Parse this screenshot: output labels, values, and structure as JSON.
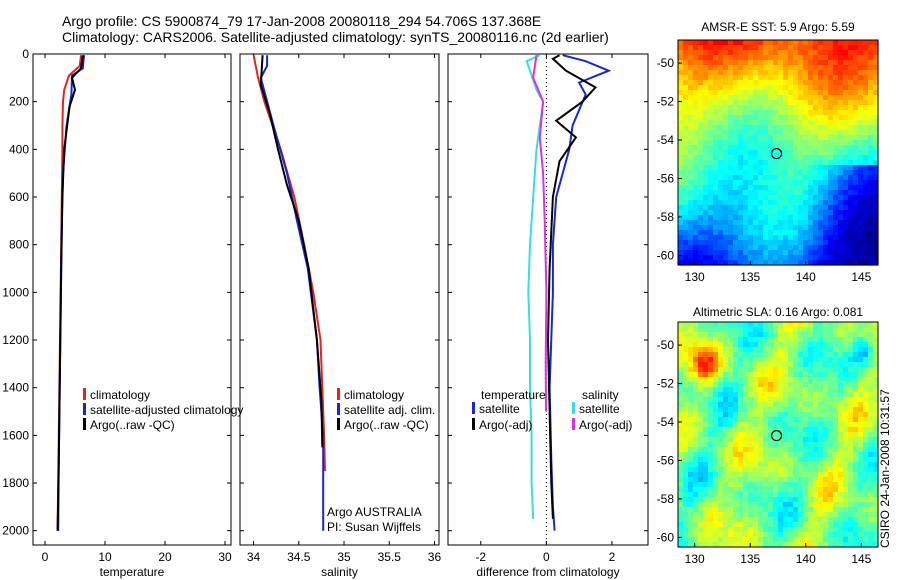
{
  "header": {
    "line1": "Argo profile: CS 5900874_79 17-Jan-2008 20080118_294 54.706S 137.368E",
    "line2": "Climatology: CARS2006. Satellite-adjusted climatology: synTS_20080116.nc (2d earlier)"
  },
  "side_label": "CSIRO 24-Jan-2008 10:31:57",
  "colors": {
    "red": "#e8231c",
    "blue": "#1526d6",
    "black": "#000000",
    "cyan": "#33e0e0",
    "magenta": "#e02ee0",
    "dotted": "#000000"
  },
  "chart_data": [
    {
      "id": "temperature_profile",
      "type": "line",
      "xlabel": "temperature",
      "ylabel": "",
      "xlim": [
        -2,
        31
      ],
      "ylim": [
        2060,
        0
      ],
      "xticks": [
        "0",
        "10",
        "20",
        "30"
      ],
      "yticks": [
        "0",
        "200",
        "400",
        "600",
        "800",
        "1000",
        "1200",
        "1400",
        "1600",
        "1800",
        "2000"
      ],
      "legend": [
        "climatology",
        "satellite-adjusted climatology",
        "Argo(..raw -QC)"
      ],
      "series": [
        {
          "name": "climatology",
          "color": "red",
          "x": [
            6.0,
            5.8,
            4.0,
            3.2,
            3.0,
            2.9,
            2.9,
            2.8,
            2.7,
            2.6,
            2.5,
            2.4,
            2.3,
            2.2,
            2.1
          ],
          "y": [
            5,
            50,
            90,
            150,
            200,
            300,
            400,
            600,
            800,
            1000,
            1200,
            1400,
            1600,
            1800,
            2000
          ]
        },
        {
          "name": "satellite-adjusted climatology",
          "color": "blue",
          "x": [
            6.5,
            6.3,
            4.5,
            4.4,
            4.2,
            3.6,
            3.0,
            2.8,
            2.7,
            2.6,
            2.5,
            2.4,
            2.3,
            2.2
          ],
          "y": [
            5,
            60,
            90,
            170,
            200,
            300,
            500,
            700,
            900,
            1100,
            1300,
            1500,
            1700,
            2000
          ]
        },
        {
          "name": "Argo(..raw -QC)",
          "color": "black",
          "x": [
            6.3,
            6.0,
            4.5,
            5.0,
            4.1,
            3.7,
            3.2,
            2.9,
            2.7,
            2.5,
            2.3,
            2.1
          ],
          "y": [
            5,
            60,
            100,
            150,
            220,
            300,
            400,
            600,
            900,
            1300,
            1700,
            2000
          ]
        }
      ]
    },
    {
      "id": "salinity_profile",
      "type": "line",
      "xlabel": "salinity",
      "ylabel": "",
      "xlim": [
        33.85,
        36.05
      ],
      "ylim": [
        2060,
        0
      ],
      "xticks": [
        "34",
        "34.5",
        "35",
        "35.5",
        "36"
      ],
      "yticks": [],
      "legend": [
        "climatology",
        "satellite adj. clim.",
        "Argo(..raw -QC)"
      ],
      "annotations": [
        "Argo AUSTRALIA",
        "PI: Susan Wijffels"
      ],
      "series": [
        {
          "name": "climatology",
          "color": "red",
          "x": [
            34.0,
            34.05,
            34.12,
            34.3,
            34.45,
            34.56,
            34.66,
            34.74,
            34.76,
            34.78,
            34.79
          ],
          "y": [
            5,
            100,
            200,
            400,
            600,
            800,
            1000,
            1200,
            1400,
            1600,
            1750
          ]
        },
        {
          "name": "satellite adj. clim.",
          "color": "blue",
          "x": [
            34.15,
            34.15,
            34.08,
            34.22,
            34.37,
            34.48,
            34.6,
            34.7,
            34.73,
            34.77,
            34.77
          ],
          "y": [
            5,
            50,
            100,
            300,
            500,
            700,
            900,
            1200,
            1400,
            1600,
            2000
          ]
        },
        {
          "name": "Argo(..raw -QC)",
          "color": "black",
          "x": [
            34.1,
            34.08,
            34.18,
            34.27,
            34.37,
            34.5,
            34.61,
            34.7,
            34.75,
            34.76
          ],
          "y": [
            5,
            130,
            250,
            400,
            550,
            700,
            900,
            1200,
            1450,
            1650
          ]
        }
      ]
    },
    {
      "id": "difference_profile",
      "type": "line",
      "xlabel": "difference from climatology",
      "ylabel": "",
      "xlim": [
        -3,
        3.1
      ],
      "ylim": [
        2060,
        0
      ],
      "xticks": [
        "-2",
        "0",
        "2"
      ],
      "yticks": [],
      "legend_headers": [
        "temperature",
        "salinity"
      ],
      "legend": [
        "satellite",
        "Argo(-adj)",
        "satellite",
        "Argo(-adj)"
      ],
      "series": [
        {
          "name": "satellite",
          "group": "temperature",
          "color": "blue",
          "x": [
            0.5,
            1.2,
            1.9,
            1.0,
            1.2,
            0.8,
            0.7,
            0.3,
            0.2,
            0.2,
            0.1,
            0.15,
            0.2,
            0.25
          ],
          "y": [
            5,
            30,
            70,
            120,
            170,
            300,
            400,
            600,
            800,
            1000,
            1400,
            1700,
            1900,
            2000
          ]
        },
        {
          "name": "Argo(-adj)",
          "group": "temperature",
          "color": "black",
          "x": [
            0.4,
            0.2,
            0.6,
            1.5,
            1.1,
            0.3,
            0.9,
            0.4,
            0.2,
            0.1,
            0.05,
            0.1,
            0.15,
            0.2
          ],
          "y": [
            5,
            20,
            70,
            140,
            200,
            280,
            350,
            450,
            600,
            900,
            1200,
            1500,
            1800,
            1950
          ]
        },
        {
          "name": "satellite",
          "group": "salinity",
          "color": "cyan",
          "x": [
            -0.2,
            -0.6,
            -0.3,
            -0.1,
            -0.3,
            -0.4,
            -0.5,
            -0.55,
            -0.5,
            -0.5,
            -0.45,
            -0.45,
            -0.4
          ],
          "y": [
            5,
            30,
            150,
            200,
            400,
            600,
            800,
            1000,
            1200,
            1400,
            1600,
            1800,
            1950
          ]
        },
        {
          "name": "Argo(-adj)",
          "group": "salinity",
          "color": "magenta",
          "x": [
            -0.3,
            -0.4,
            -0.1,
            -0.2,
            -0.1,
            -0.05,
            0.0,
            -0.02,
            -0.01
          ],
          "y": [
            5,
            100,
            200,
            350,
            500,
            700,
            1000,
            1300,
            1500
          ]
        }
      ]
    },
    {
      "id": "sst_map",
      "type": "heatmap",
      "title": "AMSR-E SST: 5.9 Argo: 5.59",
      "xlim": [
        128.5,
        146.5
      ],
      "ylim": [
        -60.5,
        -48.8
      ],
      "xticks": [
        "130",
        "135",
        "140",
        "145"
      ],
      "yticks": [
        "-50",
        "-52",
        "-54",
        "-56",
        "-58",
        "-60"
      ],
      "marker": {
        "lon": 137.368,
        "lat": -54.706
      },
      "colormap": "jet"
    },
    {
      "id": "sla_map",
      "type": "heatmap",
      "title": "Altimetric SLA: 0.16 Argo: 0.081",
      "xlim": [
        128.5,
        146.5
      ],
      "ylim": [
        -60.5,
        -48.8
      ],
      "xticks": [
        "130",
        "135",
        "140",
        "145"
      ],
      "yticks": [
        "-50",
        "-52",
        "-54",
        "-56",
        "-58",
        "-60"
      ],
      "marker": {
        "lon": 137.368,
        "lat": -54.706
      },
      "colormap": "jet"
    }
  ]
}
